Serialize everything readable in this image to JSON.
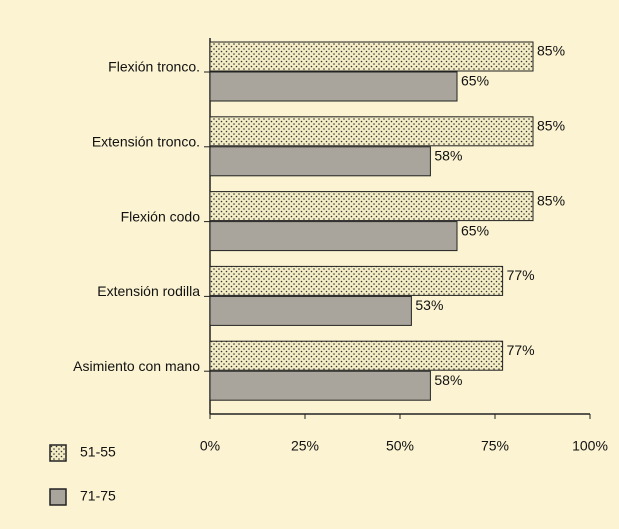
{
  "chart_data": {
    "type": "barh",
    "categories": [
      "Flexión tronco.",
      "Extensión tronco.",
      "Flexión codo",
      "Extensión rodilla",
      "Asimiento con mano"
    ],
    "series": [
      {
        "name": "51-55",
        "color": "#f4ecc4",
        "pattern": "dots",
        "values": [
          85,
          85,
          85,
          77,
          77
        ],
        "value_labels": [
          "85%",
          "85%",
          "85%",
          "77%",
          "77%"
        ]
      },
      {
        "name": "71-75",
        "color": "#a9a59c",
        "values": [
          65,
          58,
          65,
          53,
          58
        ],
        "value_labels": [
          "65%",
          "58%",
          "65%",
          "53%",
          "58%"
        ]
      }
    ],
    "xlim": [
      0,
      100
    ],
    "xticks": [
      {
        "value": 0,
        "label": "0%"
      },
      {
        "value": 25,
        "label": "25%"
      },
      {
        "value": 50,
        "label": "50%"
      },
      {
        "value": 75,
        "label": "75%"
      },
      {
        "value": 100,
        "label": "100%"
      }
    ],
    "legend": "bottom-left"
  }
}
